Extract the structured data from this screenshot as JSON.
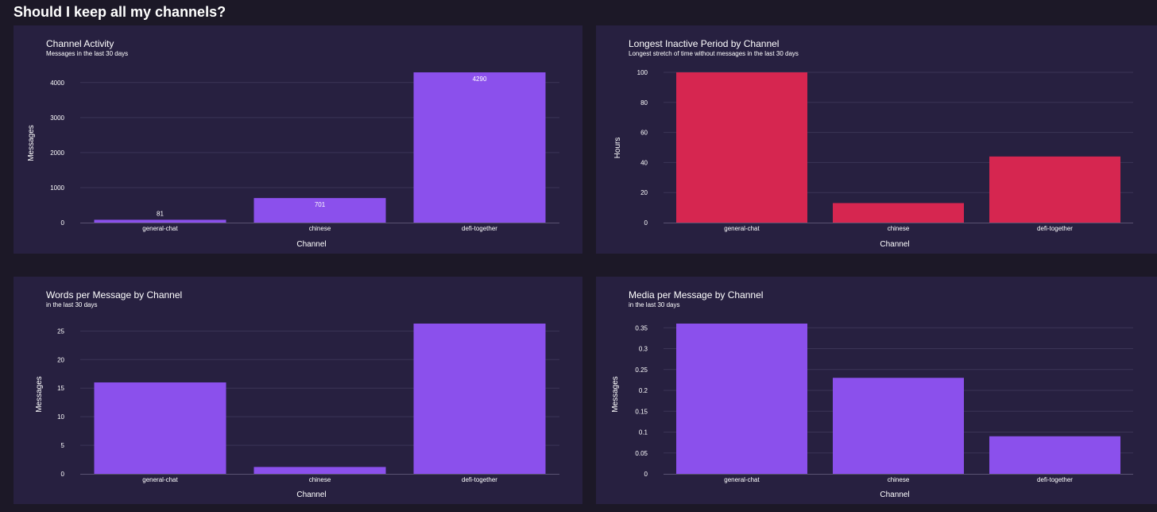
{
  "page": {
    "title": "Should I keep all my channels?"
  },
  "chart_data": [
    {
      "type": "bar",
      "title": "Channel Activity",
      "subtitle": "Messages in the last 30 days",
      "xlabel": "Channel",
      "ylabel": "Messages",
      "categories": [
        "general-chat",
        "chinese",
        "defi-together"
      ],
      "values": [
        81,
        701,
        4290
      ],
      "data_labels": [
        "81",
        "701",
        "4290"
      ],
      "ylim": [
        0,
        4290
      ],
      "yticks": [
        0,
        1000,
        2000,
        3000,
        4000
      ],
      "ytick_labels": [
        "0",
        "1000",
        "2000",
        "3000",
        "4000"
      ],
      "color": "#8b50ec",
      "grid": true
    },
    {
      "type": "bar",
      "title": "Longest Inactive Period by Channel",
      "subtitle": "Longest stretch of time without messages in the last 30 days",
      "xlabel": "Channel",
      "ylabel": "Hours",
      "categories": [
        "general-chat",
        "chinese",
        "defi-together"
      ],
      "values": [
        100,
        13,
        44
      ],
      "ylim": [
        0,
        100
      ],
      "yticks": [
        0,
        20,
        40,
        60,
        80,
        100
      ],
      "ytick_labels": [
        "0",
        "20",
        "40",
        "60",
        "80",
        "100"
      ],
      "color": "#d62650",
      "grid": true
    },
    {
      "type": "bar",
      "title": "Words per Message by Channel",
      "subtitle": "in the last 30 days",
      "xlabel": "Channel",
      "ylabel": "Messages",
      "categories": [
        "general-chat",
        "chinese",
        "defi-together"
      ],
      "values": [
        16,
        1.2,
        26.3
      ],
      "ylim": [
        0,
        26.3
      ],
      "yticks": [
        0,
        5,
        10,
        15,
        20,
        25
      ],
      "ytick_labels": [
        "0",
        "5",
        "10",
        "15",
        "20",
        "25"
      ],
      "color": "#8b50ec",
      "grid": true
    },
    {
      "type": "bar",
      "title": "Media per Message by Channel",
      "subtitle": "in the last 30 days",
      "xlabel": "Channel",
      "ylabel": "Messages",
      "categories": [
        "general-chat",
        "chinese",
        "defi-together"
      ],
      "values": [
        0.36,
        0.23,
        0.09
      ],
      "ylim": [
        0,
        0.36
      ],
      "yticks": [
        0,
        0.05,
        0.1,
        0.15,
        0.2,
        0.25,
        0.3,
        0.35
      ],
      "ytick_labels": [
        "0",
        "0.05",
        "0.1",
        "0.15",
        "0.2",
        "0.25",
        "0.3",
        "0.35"
      ],
      "color": "#8b50ec",
      "grid": true
    }
  ]
}
